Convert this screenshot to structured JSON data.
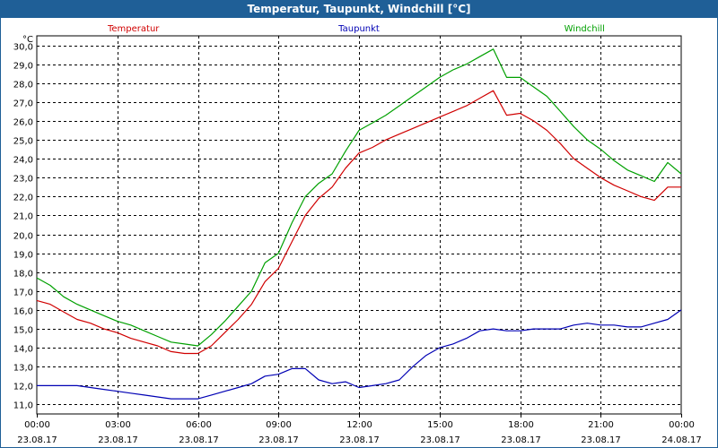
{
  "window": {
    "title": "Temperatur, Taupunkt, Windchill [°C]"
  },
  "colors": {
    "temperatur": "#d00000",
    "taupunkt": "#0000b4",
    "windchill": "#00a000"
  },
  "chart_data": {
    "type": "line",
    "title": "Temperatur, Taupunkt, Windchill [°C]",
    "ylabel": "°C",
    "ylim": [
      10.5,
      30.5
    ],
    "xlim": [
      0,
      24
    ],
    "grid": true,
    "legend_position": "top",
    "y_ticks": [
      "11,0",
      "12,0",
      "13,0",
      "14,0",
      "15,0",
      "16,0",
      "17,0",
      "18,0",
      "19,0",
      "20,0",
      "21,0",
      "22,0",
      "23,0",
      "24,0",
      "25,0",
      "26,0",
      "27,0",
      "28,0",
      "29,0",
      "30,0"
    ],
    "x_ticks": [
      {
        "time": "00:00",
        "date": "23.08.17"
      },
      {
        "time": "03:00",
        "date": "23.08.17"
      },
      {
        "time": "06:00",
        "date": "23.08.17"
      },
      {
        "time": "09:00",
        "date": "23.08.17"
      },
      {
        "time": "12:00",
        "date": "23.08.17"
      },
      {
        "time": "15:00",
        "date": "23.08.17"
      },
      {
        "time": "18:00",
        "date": "23.08.17"
      },
      {
        "time": "21:00",
        "date": "23.08.17"
      },
      {
        "time": "00:00",
        "date": "24.08.17"
      }
    ],
    "x": [
      0,
      0.5,
      1,
      1.5,
      2,
      2.5,
      3,
      3.5,
      4,
      4.5,
      5,
      5.5,
      6,
      6.5,
      7,
      7.5,
      8,
      8.5,
      9,
      9.5,
      10,
      10.5,
      11,
      11.5,
      12,
      12.5,
      13,
      13.5,
      14,
      14.5,
      15,
      15.5,
      16,
      16.5,
      17,
      17.5,
      18,
      18.5,
      19,
      19.5,
      20,
      20.5,
      21,
      21.5,
      22,
      22.5,
      23,
      23.5,
      24
    ],
    "series": [
      {
        "name": "Temperatur",
        "key": "temperatur",
        "values": [
          16.5,
          16.3,
          15.9,
          15.5,
          15.3,
          15.0,
          14.8,
          14.5,
          14.3,
          14.1,
          13.8,
          13.7,
          13.7,
          14.1,
          14.8,
          15.5,
          16.3,
          17.5,
          18.2,
          19.6,
          21.0,
          21.9,
          22.5,
          23.5,
          24.3,
          24.6,
          25.0,
          25.3,
          25.6,
          25.9,
          26.2,
          26.5,
          26.8,
          27.2,
          27.6,
          26.3,
          26.4,
          26.0,
          25.5,
          24.8,
          24.0,
          23.5,
          23.0,
          22.6,
          22.3,
          22.0,
          21.8,
          22.5,
          22.5
        ]
      },
      {
        "name": "Taupunkt",
        "key": "taupunkt",
        "values": [
          12.0,
          12.0,
          12.0,
          12.0,
          11.9,
          11.8,
          11.7,
          11.6,
          11.5,
          11.4,
          11.3,
          11.3,
          11.3,
          11.5,
          11.7,
          11.9,
          12.1,
          12.5,
          12.6,
          12.9,
          12.9,
          12.3,
          12.1,
          12.2,
          11.9,
          12.0,
          12.1,
          12.3,
          13.0,
          13.6,
          14.0,
          14.2,
          14.5,
          14.9,
          15.0,
          14.9,
          14.9,
          15.0,
          15.0,
          15.0,
          15.2,
          15.3,
          15.2,
          15.2,
          15.1,
          15.1,
          15.3,
          15.5,
          16.0
        ]
      },
      {
        "name": "Windchill",
        "key": "windchill",
        "values": [
          17.7,
          17.3,
          16.7,
          16.3,
          16.0,
          15.7,
          15.4,
          15.2,
          14.9,
          14.6,
          14.3,
          14.2,
          14.1,
          14.7,
          15.4,
          16.2,
          17.0,
          18.5,
          19.0,
          20.6,
          22.0,
          22.7,
          23.2,
          24.4,
          25.5,
          25.9,
          26.3,
          26.8,
          27.3,
          27.8,
          28.3,
          28.7,
          29.0,
          29.4,
          29.8,
          28.3,
          28.3,
          27.8,
          27.3,
          26.5,
          25.7,
          25.0,
          24.5,
          23.9,
          23.4,
          23.1,
          22.8,
          23.8,
          23.2
        ]
      }
    ]
  }
}
